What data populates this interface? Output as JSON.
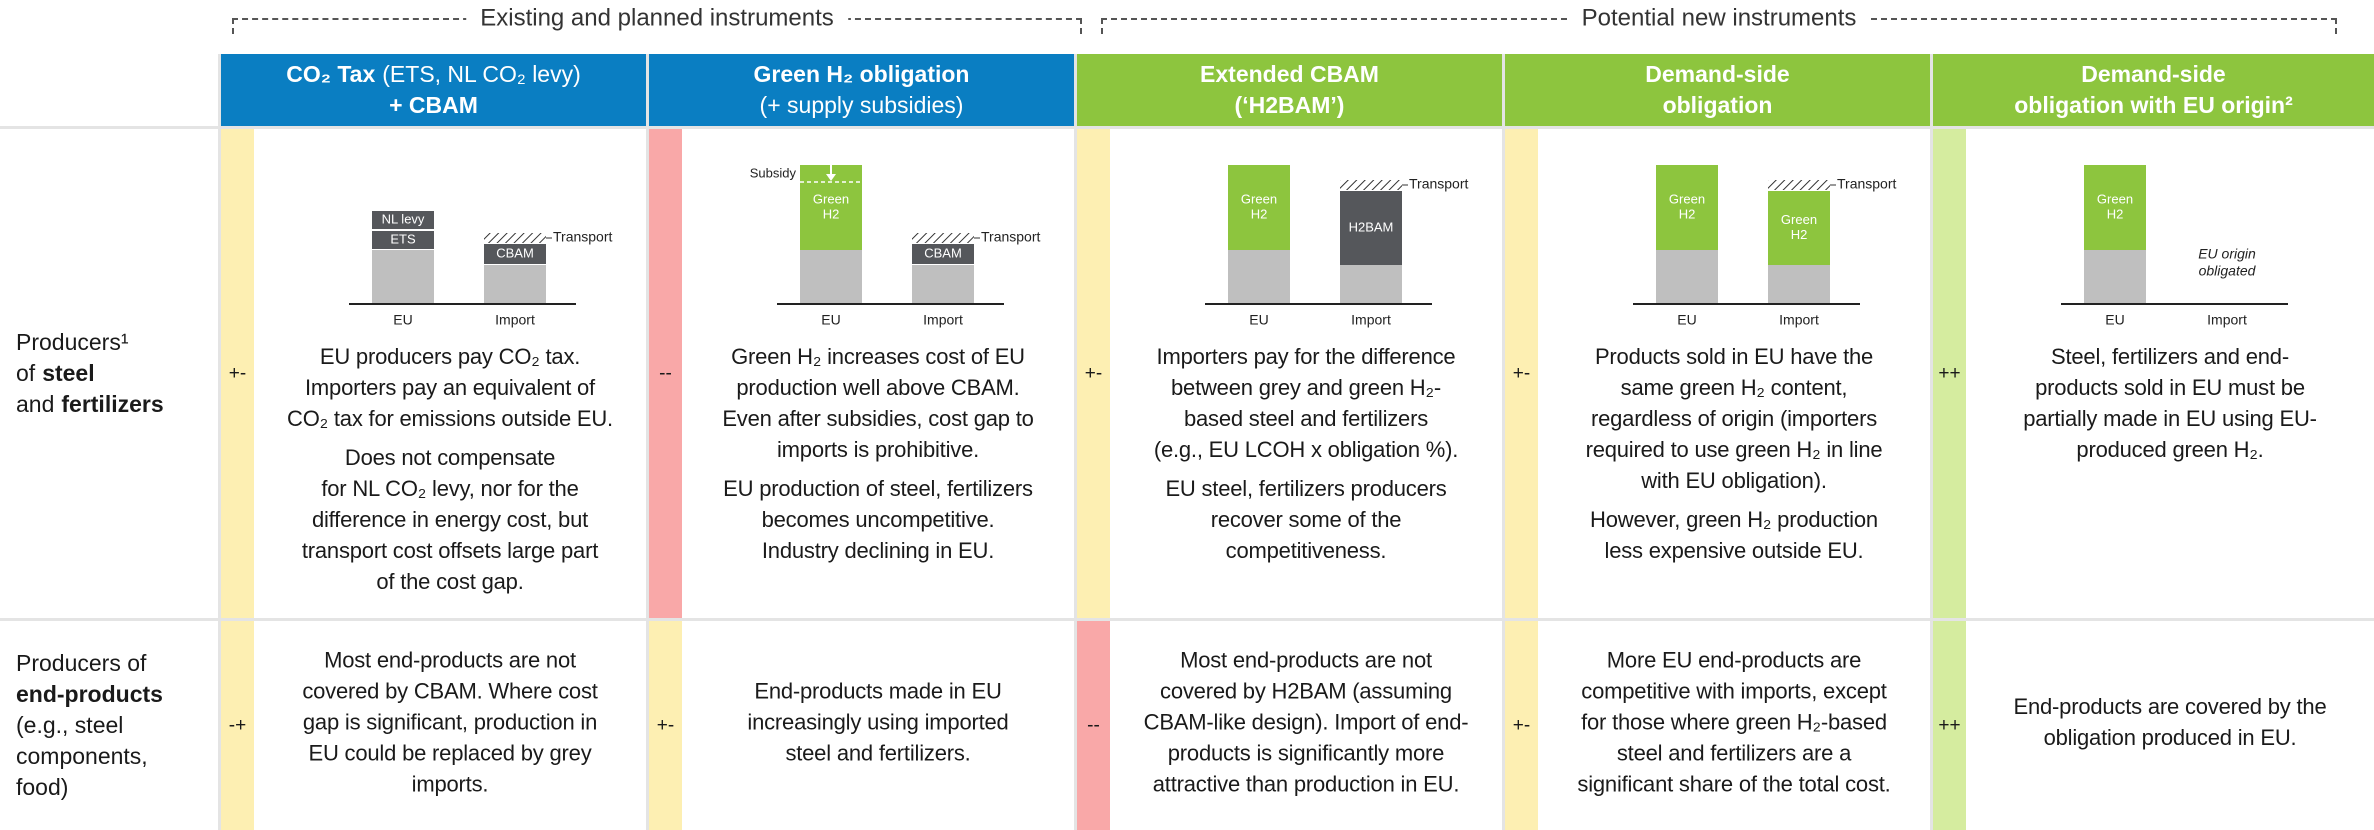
{
  "groups": [
    "Existing and planned instruments",
    "Potential new instruments"
  ],
  "columns": [
    {
      "header": [
        [
          "CO₂ Tax",
          "(ETS, NL CO₂ levy)"
        ],
        [
          "+ CBAM"
        ]
      ],
      "color": "#0a7ec2",
      "diagram": {
        "x_labels": [
          "EU",
          "Import"
        ],
        "eu": [
          {
            "lines": [
              "NL levy"
            ],
            "color": "#55575b"
          },
          {
            "lines": [
              "ETS"
            ],
            "color": "#55575b"
          }
        ],
        "import": [
          {
            "lines": [
              "CBAM"
            ],
            "color": "#55575b"
          }
        ],
        "transport": "Transport"
      }
    },
    {
      "header": [
        [
          "Green H₂ obligation"
        ],
        [
          "(+ supply subsidies)"
        ]
      ],
      "color": "#0a7ec2",
      "diagram": {
        "x_labels": [
          "EU",
          "Import"
        ],
        "eu": [
          {
            "lines": [
              "Green",
              "H2"
            ],
            "color": "#8dc53e"
          }
        ],
        "import": [
          {
            "lines": [
              "CBAM"
            ],
            "color": "#55575b"
          }
        ],
        "transport": "Transport",
        "subsidy": "Subsidy"
      }
    },
    {
      "header": [
        [
          "Extended CBAM"
        ],
        [
          "(‘H2BAM’)"
        ]
      ],
      "color": "#8dc53e",
      "diagram": {
        "x_labels": [
          "EU",
          "Import"
        ],
        "eu": [
          {
            "lines": [
              "Green",
              "H2"
            ],
            "color": "#8dc53e"
          }
        ],
        "import": [
          {
            "lines": [
              "H2BAM"
            ],
            "color": "#55575b"
          }
        ],
        "transport": "Transport"
      }
    },
    {
      "header": [
        [
          "Demand-side"
        ],
        [
          "obligation"
        ]
      ],
      "color": "#8dc53e",
      "diagram": {
        "x_labels": [
          "EU",
          "Import"
        ],
        "eu": [
          {
            "lines": [
              "Green",
              "H2"
            ],
            "color": "#8dc53e"
          }
        ],
        "import": [
          {
            "lines": [
              "Green",
              "H2"
            ],
            "color": "#8dc53e"
          }
        ],
        "transport": "Transport"
      }
    },
    {
      "header": [
        [
          "Demand-side"
        ],
        [
          "obligation with EU origin²"
        ]
      ],
      "color": "#8dc53e",
      "diagram": {
        "x_labels": [
          "EU",
          "Import"
        ],
        "eu": [
          {
            "lines": [
              "Green",
              "H2"
            ],
            "color": "#8dc53e"
          }
        ],
        "note": [
          "EU origin",
          "obligated"
        ]
      }
    }
  ],
  "rows": [
    {
      "label": [
        [
          "Producers¹"
        ],
        [
          "of",
          "steel"
        ],
        [
          "and",
          "fertilizers"
        ]
      ],
      "cells": [
        {
          "rating": {
            "label": "+-",
            "color": "#fdefb2"
          },
          "paragraphs": [
            [
              "EU producers pay CO₂ tax.",
              "Importers pay an equivalent of",
              "CO₂ tax for emissions outside EU."
            ],
            [
              "Does not compensate",
              "for NL CO₂ levy, nor for the",
              "difference in energy cost, but",
              "transport cost offsets large part",
              "of the cost gap."
            ]
          ]
        },
        {
          "rating": {
            "label": "--",
            "color": "#f9a8a8"
          },
          "paragraphs": [
            [
              "Green H₂ increases cost of EU",
              "production well above CBAM.",
              "Even after subsidies, cost gap to",
              "imports is prohibitive."
            ],
            [
              "EU production of steel, fertilizers",
              "becomes uncompetitive.",
              "Industry declining in EU."
            ]
          ]
        },
        {
          "rating": {
            "label": "+-",
            "color": "#fdefb2"
          },
          "paragraphs": [
            [
              "Importers pay for the difference",
              "between grey and green H₂-",
              "based steel and fertilizers",
              "(e.g., EU LCOH x obligation %)."
            ],
            [
              "EU steel, fertilizers producers",
              "recover some of the",
              "competitiveness."
            ]
          ]
        },
        {
          "rating": {
            "label": "+-",
            "color": "#fdefb2"
          },
          "paragraphs": [
            [
              "Products sold in EU have the",
              "same green H₂ content,",
              "regardless of origin (importers",
              "required to use green H₂ in line",
              "with EU obligation)."
            ],
            [
              "However, green H₂ production",
              "less expensive outside EU."
            ]
          ]
        },
        {
          "rating": {
            "label": "++",
            "color": "#d5ec9f"
          },
          "paragraphs": [
            [
              "Steel, fertilizers and end-",
              "products sold in EU must be",
              "partially made in EU using EU-",
              "produced green H₂."
            ]
          ]
        }
      ]
    },
    {
      "label": [
        [
          "Producers of"
        ],
        [
          "end-products"
        ],
        [
          "(e.g., steel"
        ],
        [
          "components,"
        ],
        [
          "food)"
        ]
      ],
      "cells": [
        {
          "rating": {
            "label": "-+",
            "color": "#fdefb2"
          },
          "paragraphs": [
            [
              "Most end-products are not",
              "covered by CBAM. Where cost",
              "gap is significant, production in",
              "EU could be replaced by grey",
              "imports."
            ]
          ]
        },
        {
          "rating": {
            "label": "+-",
            "color": "#fdefb2"
          },
          "paragraphs": [
            [
              "End-products made in EU",
              "increasingly using imported",
              "steel and fertilizers."
            ]
          ]
        },
        {
          "rating": {
            "label": "--",
            "color": "#f9a8a8"
          },
          "paragraphs": [
            [
              "Most end-products are not",
              "covered by H2BAM (assuming",
              "CBAM-like design). Import of end-",
              "products is significantly more",
              "attractive than production in EU."
            ]
          ]
        },
        {
          "rating": {
            "label": "+-",
            "color": "#fdefb2"
          },
          "paragraphs": [
            [
              "More EU end-products are",
              "competitive with imports, except",
              "for those where green H₂-based",
              "steel and fertilizers are a",
              "significant share of the total cost."
            ]
          ]
        },
        {
          "rating": {
            "label": "++",
            "color": "#d5ec9f"
          },
          "paragraphs": [
            [
              "End-products are covered by the",
              "obligation produced in EU."
            ]
          ]
        }
      ]
    }
  ]
}
